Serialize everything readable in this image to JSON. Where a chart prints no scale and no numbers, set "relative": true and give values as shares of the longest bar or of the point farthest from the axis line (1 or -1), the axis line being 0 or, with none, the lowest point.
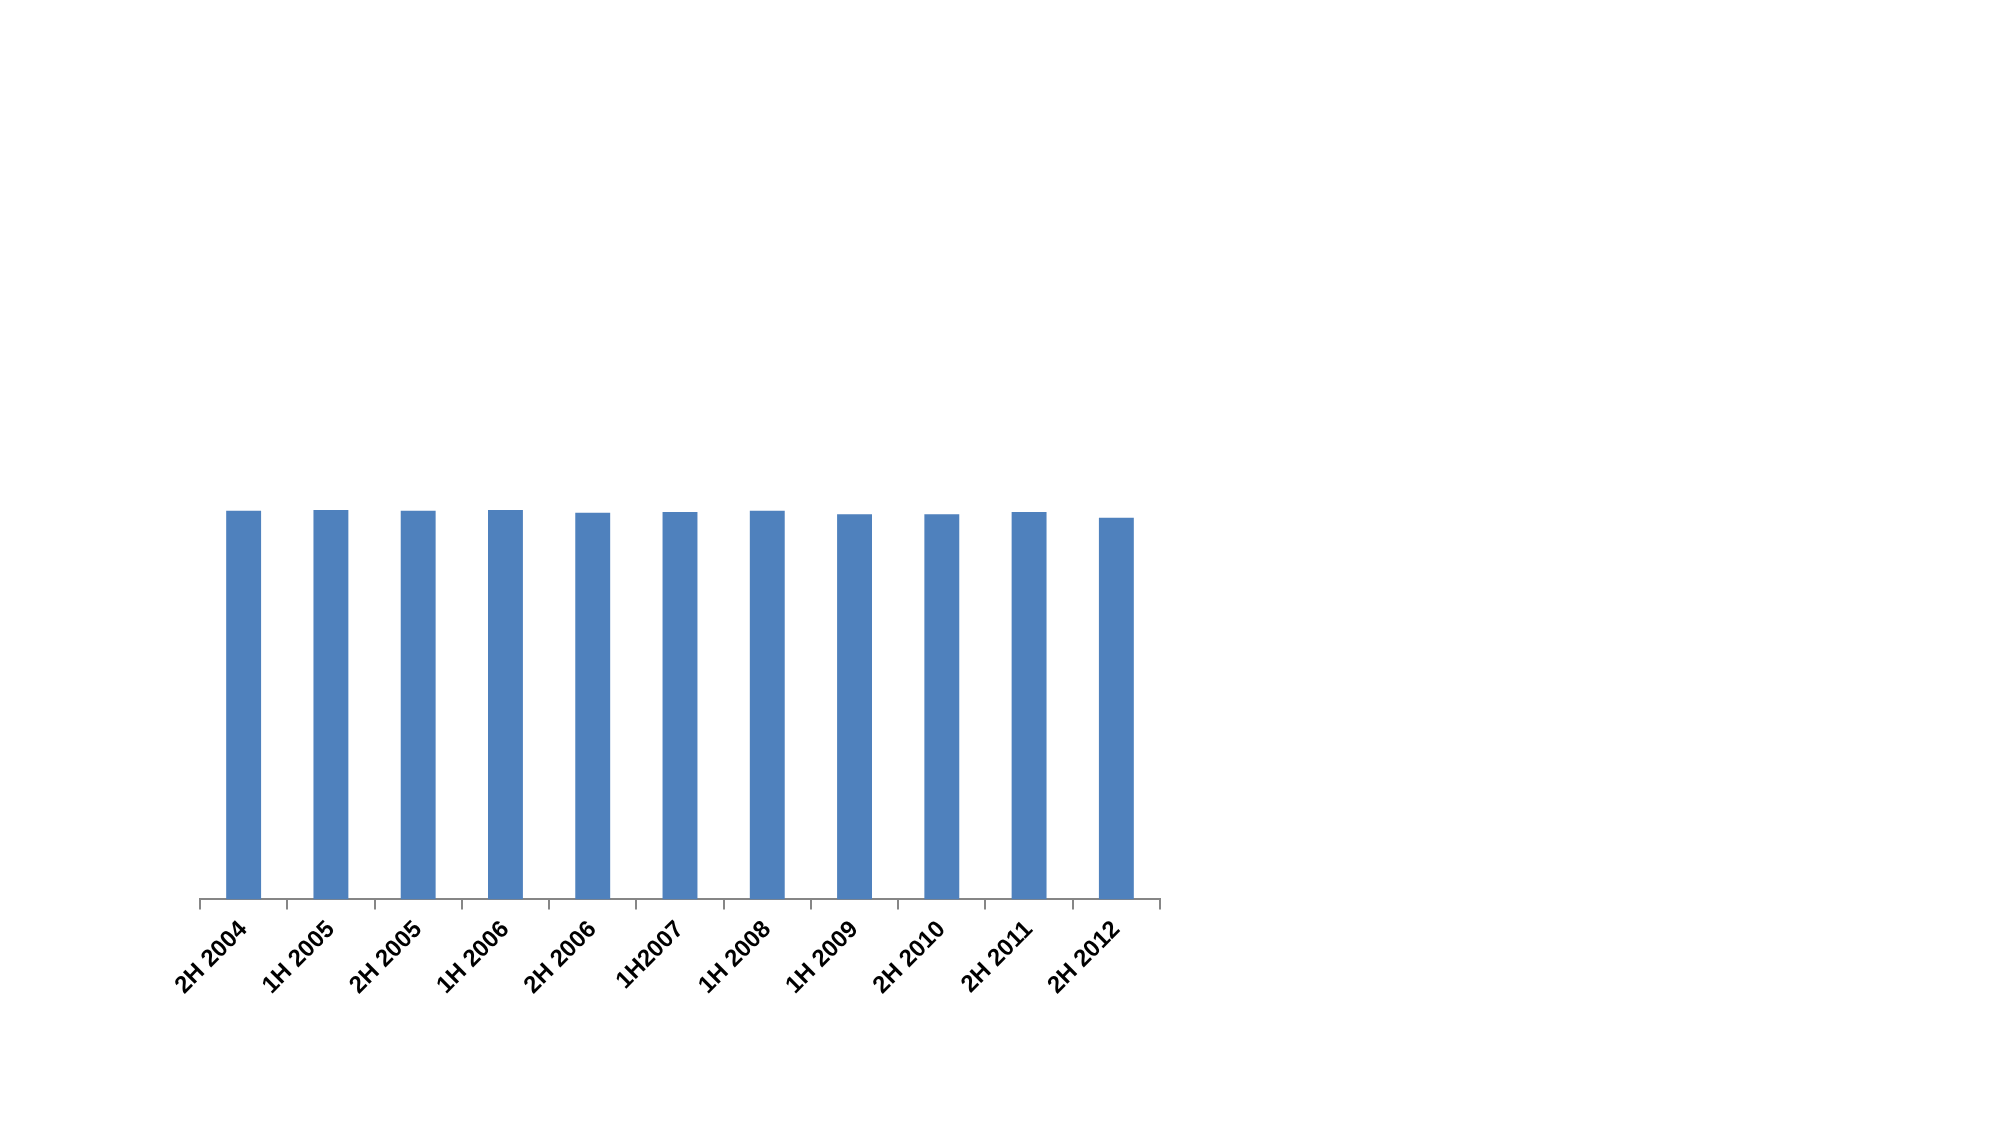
{
  "chart_data": {
    "type": "bar",
    "relative": true,
    "categories": [
      "2H 2004",
      "1H 2005",
      "2H 2005",
      "1H 2006",
      "2H 2006",
      "1H2007",
      "1H 2008",
      "1H 2009",
      "2H 2010",
      "2H 2011",
      "2H 2012"
    ],
    "values": [
      0.998,
      1,
      0.998,
      1,
      0.993,
      0.995,
      0.998,
      0.989,
      0.989,
      0.995,
      0.98
    ],
    "color": "#4f81bd",
    "grid": false,
    "legend": false
  }
}
